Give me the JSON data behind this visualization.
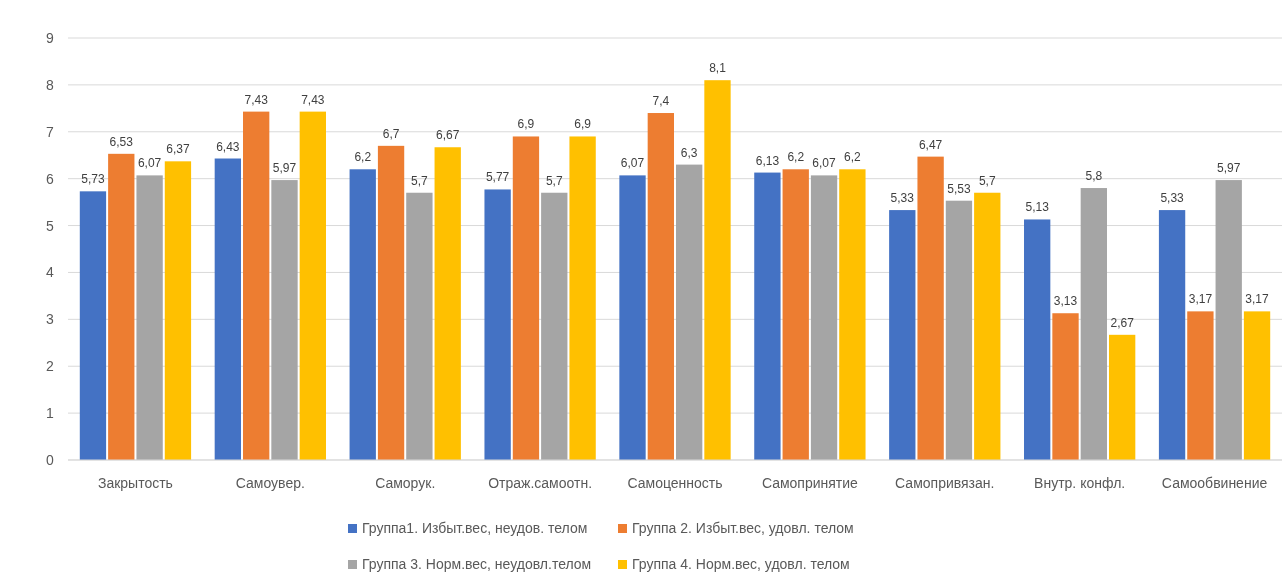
{
  "chart_data": {
    "type": "bar",
    "categories": [
      "Закрытость",
      "Самоувер.",
      "Саморук.",
      "Отраж.самоотн.",
      "Самоценность",
      "Самопринятие",
      "Самопривязан.",
      "Внутр. конфл.",
      "Самообвинение"
    ],
    "series": [
      {
        "name": "Группа1. Избыт.вес, неудов. телом",
        "color": "#4472c4",
        "values": [
          5.73,
          6.43,
          6.2,
          5.77,
          6.07,
          6.13,
          5.33,
          5.13,
          5.33
        ],
        "value_labels": [
          "5,73",
          "6,43",
          "6,2",
          "5,77",
          "6,07",
          "6,13",
          "5,33",
          "5,13",
          "5,33"
        ]
      },
      {
        "name": "Группа 2. Избыт.вес, удовл. телом",
        "color": "#ed7d31",
        "values": [
          6.53,
          7.43,
          6.7,
          6.9,
          7.4,
          6.2,
          6.47,
          3.13,
          3.17
        ],
        "value_labels": [
          "6,53",
          "7,43",
          "6,7",
          "6,9",
          "7,4",
          "6,2",
          "6,47",
          "3,13",
          "3,17"
        ]
      },
      {
        "name": "Группа 3. Норм.вес, неудовл.телом",
        "color": "#a5a5a5",
        "values": [
          6.07,
          5.97,
          5.7,
          5.7,
          6.3,
          6.07,
          5.53,
          5.8,
          5.97
        ],
        "value_labels": [
          "6,07",
          "5,97",
          "5,7",
          "5,7",
          "6,3",
          "6,07",
          "5,53",
          "5,8",
          "5,97"
        ]
      },
      {
        "name": "Группа 4. Норм.вес, удовл. телом",
        "color": "#ffc000",
        "values": [
          6.37,
          7.43,
          6.67,
          6.9,
          8.1,
          6.2,
          5.7,
          2.67,
          3.17
        ],
        "value_labels": [
          "6,37",
          "7,43",
          "6,67",
          "6,9",
          "8,1",
          "6,2",
          "5,7",
          "2,67",
          "3,17"
        ]
      }
    ],
    "ylim": [
      0,
      9
    ],
    "yticks": [
      0,
      1,
      2,
      3,
      4,
      5,
      6,
      7,
      8,
      9
    ],
    "grid": "y",
    "legend": "bottom"
  }
}
